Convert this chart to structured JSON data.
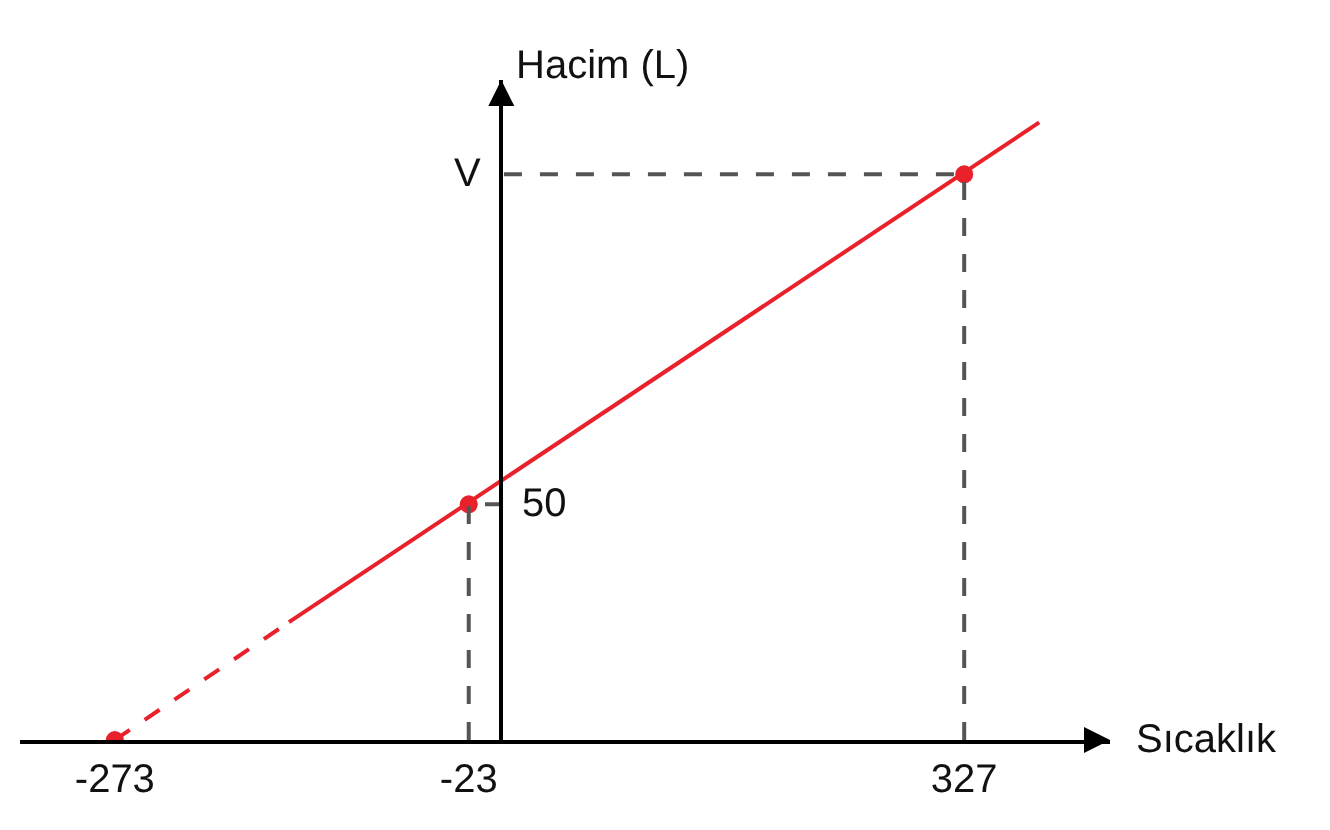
{
  "chart_data": {
    "type": "line",
    "xlabel": "Sıcaklık",
    "ylabel": "Hacim (L)",
    "xlim": [
      -340,
      430
    ],
    "ylim": [
      0,
      140
    ],
    "xticks": [
      -273,
      -23,
      327
    ],
    "tick_labels": "x",
    "grid": false,
    "series": [
      {
        "color": "#e8212b",
        "line_style": "dashed",
        "marker": "none",
        "x": [
          -273,
          -150
        ],
        "values": [
          0,
          25
        ]
      },
      {
        "color": "#e8212b",
        "line_style": "solid",
        "marker": "none",
        "x": [
          -150,
          380
        ],
        "values": [
          25,
          131
        ]
      },
      {
        "type": "scatter",
        "color": "#e8212b",
        "marker": "circle",
        "x": [
          -273,
          -23,
          327
        ],
        "values": [
          0,
          50,
          120
        ]
      },
      {
        "color": "#555555",
        "line_style": "dashed",
        "marker": "none",
        "x": [
          -23,
          -23,
          0
        ],
        "values": [
          0,
          50,
          50
        ],
        "value_labels": [
          null,
          null,
          "50"
        ]
      },
      {
        "color": "#555555",
        "line_style": "dashed",
        "marker": "none",
        "x": [
          327,
          327,
          0
        ],
        "values": [
          0,
          120,
          120
        ],
        "value_labels": [
          null,
          null,
          "V"
        ]
      }
    ]
  }
}
